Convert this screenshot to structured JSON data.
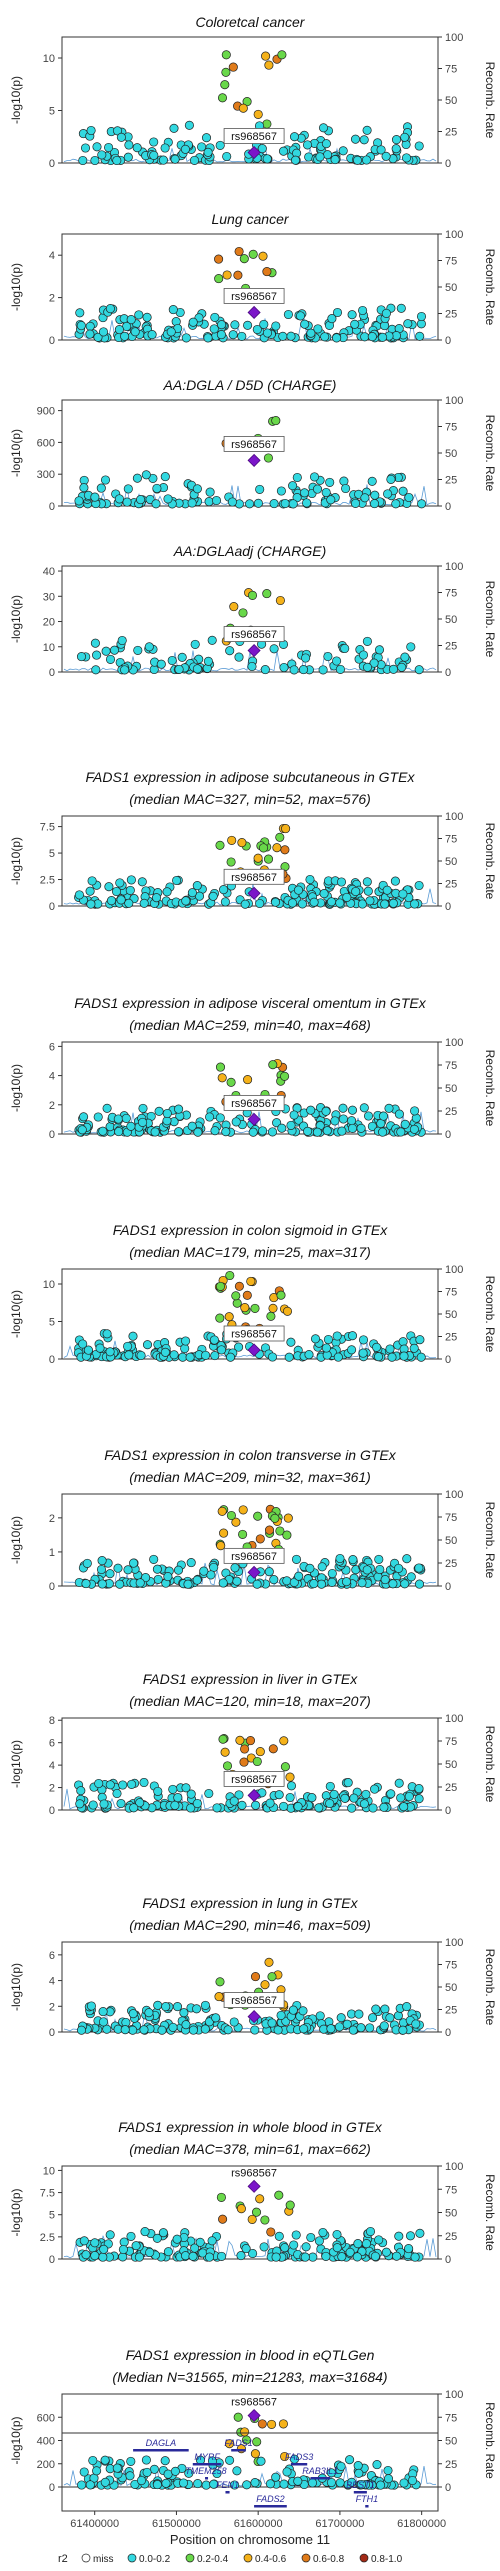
{
  "figure": {
    "ylabel": "-log10(p)",
    "ylabel_right": "Recomb. Rate",
    "xlabel": "Position on chromosome 11",
    "x_ticks": [
      "61400000",
      "61500000",
      "61600000",
      "61700000",
      "61800000"
    ],
    "lead_snp": "rs968567"
  },
  "legend": {
    "title": "r2",
    "items": [
      {
        "label": "miss",
        "color": "#ffffff"
      },
      {
        "label": "0.0-0.2",
        "color": "#32d8e0"
      },
      {
        "label": "0.2-0.4",
        "color": "#69d84a"
      },
      {
        "label": "0.4-0.6",
        "color": "#f5b21a"
      },
      {
        "label": "0.6-0.8",
        "color": "#e07b1a"
      },
      {
        "label": "0.8-1.0",
        "color": "#a32a16"
      }
    ]
  },
  "genes": [
    {
      "name": "DAGLA",
      "start": 61447000,
      "end": 61515000,
      "row": 0
    },
    {
      "name": "FADS1",
      "start": 61567000,
      "end": 61585000,
      "row": 0
    },
    {
      "name": "MYRF",
      "start": 61520000,
      "end": 61555000,
      "row": 1
    },
    {
      "name": "FADS3",
      "start": 61640000,
      "end": 61660000,
      "row": 1
    },
    {
      "name": "TMEM258",
      "start": 61535000,
      "end": 61537000,
      "row": 2
    },
    {
      "name": "RAB3IL1",
      "start": 61664000,
      "end": 61688000,
      "row": 2
    },
    {
      "name": "FEN1",
      "start": 61560000,
      "end": 61565000,
      "row": 3
    },
    {
      "name": "BEST1",
      "start": 61717000,
      "end": 61733000,
      "row": 3
    },
    {
      "name": "FADS2",
      "start": 61595000,
      "end": 61635000,
      "row": 4
    },
    {
      "name": "FTH1",
      "start": 61731000,
      "end": 61735000,
      "row": 4
    }
  ],
  "chart_data": [
    {
      "type": "scatter",
      "title": "Coloretcal cancer",
      "subtitle": "",
      "ylim": [
        0,
        12
      ],
      "yticks": [
        0,
        5,
        10
      ],
      "lead_y": 1.0,
      "peak": 10.5,
      "n": 150,
      "seed": 1
    },
    {
      "type": "scatter",
      "title": "Lung cancer",
      "subtitle": "",
      "ylim": [
        0,
        5
      ],
      "yticks": [
        0,
        2,
        4
      ],
      "lead_y": 1.3,
      "peak": 4.3,
      "n": 170,
      "seed": 2
    },
    {
      "type": "scatter",
      "title": "AA:DGLA / D5D (CHARGE)",
      "subtitle": "",
      "ylim": [
        0,
        1000
      ],
      "yticks": [
        0,
        300,
        600,
        900
      ],
      "lead_y": 430,
      "peak": 890,
      "n": 120,
      "seed": 3
    },
    {
      "type": "scatter",
      "title": "AA:DGLAadj (CHARGE)",
      "subtitle": "",
      "ylim": [
        0,
        42
      ],
      "yticks": [
        0,
        10,
        20,
        30,
        40
      ],
      "lead_y": 8.5,
      "peak": 34,
      "n": 110,
      "seed": 4
    },
    {
      "type": "scatter",
      "title": "FADS1 expression in adipose subcutaneous in GTEx",
      "subtitle": "(median MAC=327, min=52, max=576)",
      "ylim": [
        0,
        8.5
      ],
      "yticks": [
        0,
        2.5,
        5,
        7.5
      ],
      "lead_y": 1.2,
      "peak": 7.4,
      "n": 200,
      "seed": 5
    },
    {
      "type": "scatter",
      "title": "FADS1 expression in adipose visceral omentum in GTEx",
      "subtitle": "(median MAC=259, min=40, max=468)",
      "ylim": [
        0,
        6.3
      ],
      "yticks": [
        0,
        2,
        4,
        6
      ],
      "lead_y": 1.0,
      "peak": 5.3,
      "n": 200,
      "seed": 6
    },
    {
      "type": "scatter",
      "title": "FADS1 expression in colon sigmoid in GTEx",
      "subtitle": "(median MAC=179, min=25, max=317)",
      "ylim": [
        0,
        12
      ],
      "yticks": [
        0,
        5,
        10
      ],
      "lead_y": 1.2,
      "peak": 11.2,
      "n": 200,
      "seed": 7
    },
    {
      "type": "scatter",
      "title": "FADS1 expression in colon transverse in GTEx",
      "subtitle": "(median MAC=209, min=32, max=361)",
      "ylim": [
        0,
        2.7
      ],
      "yticks": [
        0,
        1,
        2
      ],
      "lead_y": 0.4,
      "peak": 2.6,
      "n": 200,
      "seed": 8
    },
    {
      "type": "scatter",
      "title": "FADS1 expression in liver in GTEx",
      "subtitle": "(median MAC=120, min=18, max=207)",
      "ylim": [
        0,
        8.2
      ],
      "yticks": [
        0,
        2,
        4,
        6,
        8
      ],
      "lead_y": 1.3,
      "peak": 6.5,
      "n": 180,
      "seed": 9
    },
    {
      "type": "scatter",
      "title": "FADS1 expression in lung in GTEx",
      "subtitle": "(median MAC=290, min=46, max=509)",
      "ylim": [
        0,
        7
      ],
      "yticks": [
        0,
        2,
        4,
        6
      ],
      "lead_y": 1.2,
      "peak": 5.6,
      "n": 190,
      "seed": 10
    },
    {
      "type": "scatter",
      "title": "FADS1 expression in whole blood in GTEx",
      "subtitle": "(median MAC=378, min=61, max=662)",
      "ylim": [
        0,
        10.5
      ],
      "yticks": [
        0,
        2.5,
        5,
        7.5,
        10
      ],
      "lead_y": 8.2,
      "peak": 8.2,
      "n": 190,
      "seed": 11,
      "lead_top": true
    },
    {
      "type": "scatter",
      "title": "FADS1 expression in blood in eQTLGen",
      "subtitle": "(Median N=31565, min=21283, max=31684)",
      "ylim": [
        0,
        800
      ],
      "yticks": [
        0,
        200,
        400,
        600
      ],
      "lead_y": 615,
      "peak": 615,
      "n": 160,
      "seed": 12,
      "lead_top": true
    }
  ]
}
